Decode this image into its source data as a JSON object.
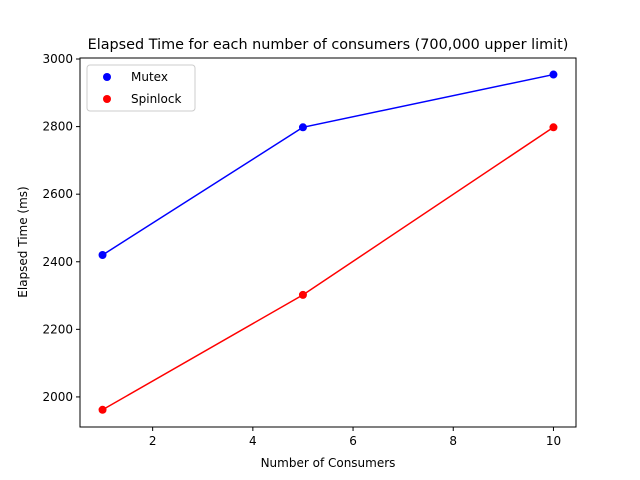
{
  "chart_data": {
    "type": "line",
    "title": "Elapsed Time for each number of consumers (700,000 upper limit)",
    "xlabel": "Number of Consumers",
    "ylabel": "Elapsed Time (ms)",
    "xlim": [
      0.55,
      10.45
    ],
    "ylim": [
      1911,
      3003
    ],
    "xticks": [
      2,
      4,
      6,
      8,
      10
    ],
    "yticks": [
      2000,
      2200,
      2400,
      2600,
      2800,
      3000
    ],
    "grid": false,
    "legend_position": "upper-left",
    "x": [
      1,
      5,
      10
    ],
    "series": [
      {
        "name": "Mutex",
        "color": "#0000ff",
        "values": [
          2420,
          2798,
          2954
        ]
      },
      {
        "name": "Spinlock",
        "color": "#ff0000",
        "values": [
          1962,
          2302,
          2798
        ]
      }
    ]
  }
}
